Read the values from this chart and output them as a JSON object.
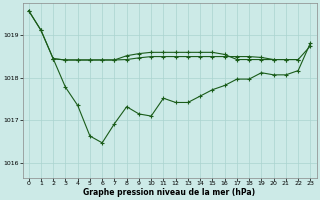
{
  "bg_color": "#cceae7",
  "grid_color": "#aad4d0",
  "line_color": "#1a5c1a",
  "xlabel": "Graphe pression niveau de la mer (hPa)",
  "xlim": [
    -0.5,
    23.5
  ],
  "ylim": [
    1015.65,
    1019.75
  ],
  "yticks": [
    1016,
    1017,
    1018,
    1019
  ],
  "xticks": [
    0,
    1,
    2,
    3,
    4,
    5,
    6,
    7,
    8,
    9,
    10,
    11,
    12,
    13,
    14,
    15,
    16,
    17,
    18,
    19,
    20,
    21,
    22,
    23
  ],
  "series1_x": [
    0,
    1,
    2,
    3,
    4,
    5,
    6,
    7,
    8,
    9,
    10,
    11,
    12,
    13,
    14,
    15,
    16,
    17,
    18,
    19,
    20,
    21,
    22,
    23
  ],
  "series1_y": [
    1019.58,
    1019.12,
    1018.45,
    1018.42,
    1018.42,
    1018.42,
    1018.42,
    1018.42,
    1018.43,
    1018.47,
    1018.5,
    1018.5,
    1018.5,
    1018.5,
    1018.5,
    1018.5,
    1018.5,
    1018.5,
    1018.5,
    1018.48,
    1018.43,
    1018.43,
    1018.43,
    1018.75
  ],
  "series2_x": [
    2,
    3,
    4,
    5,
    6,
    7,
    8,
    9,
    10,
    11,
    12,
    13,
    14,
    15,
    16,
    17,
    18,
    19,
    20,
    21,
    22
  ],
  "series2_y": [
    1018.45,
    1018.42,
    1018.42,
    1018.42,
    1018.42,
    1018.42,
    1018.52,
    1018.57,
    1018.6,
    1018.6,
    1018.6,
    1018.6,
    1018.6,
    1018.6,
    1018.55,
    1018.43,
    1018.43,
    1018.43,
    1018.43,
    1018.43,
    1018.43
  ],
  "series3_x": [
    0,
    1,
    2,
    3,
    4,
    5,
    6,
    7,
    8,
    9,
    10,
    11,
    12,
    13,
    14,
    15,
    16,
    17,
    18,
    19,
    20,
    21,
    22,
    23
  ],
  "series3_y": [
    1019.58,
    1019.12,
    1018.45,
    1017.78,
    1017.35,
    1016.63,
    1016.47,
    1016.92,
    1017.32,
    1017.15,
    1017.1,
    1017.52,
    1017.42,
    1017.42,
    1017.57,
    1017.72,
    1017.82,
    1017.97,
    1017.97,
    1018.12,
    1018.07,
    1018.07,
    1018.17,
    1018.82
  ]
}
